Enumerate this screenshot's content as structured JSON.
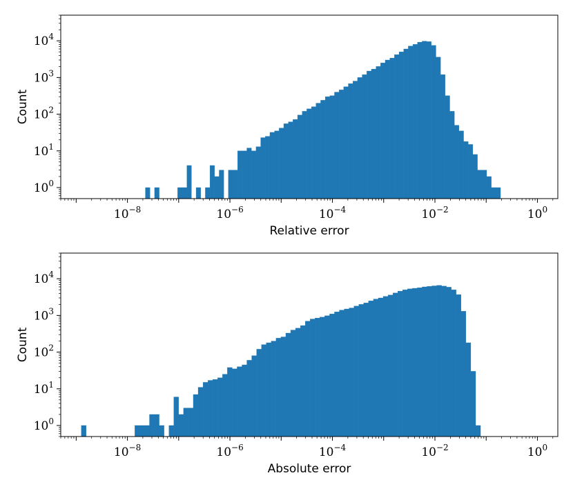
{
  "chart_data": [
    {
      "type": "bar",
      "xlabel": "Relative error",
      "ylabel": "Count",
      "x_scale": "log",
      "y_scale": "log",
      "xlim": [
        5e-10,
        2.5
      ],
      "ylim": [
        0.5,
        50000
      ],
      "grid": false,
      "legend": "none",
      "bar_color": "#1f77b4",
      "x_ticks": [
        {
          "base": "10",
          "exp": "−8",
          "value": 1e-08
        },
        {
          "base": "10",
          "exp": "−6",
          "value": 1e-06
        },
        {
          "base": "10",
          "exp": "−4",
          "value": 0.0001
        },
        {
          "base": "10",
          "exp": "−2",
          "value": 0.01
        },
        {
          "base": "10",
          "exp": "0",
          "value": 1
        }
      ],
      "y_ticks": [
        {
          "base": "10",
          "exp": "0",
          "value": 1
        },
        {
          "base": "10",
          "exp": "1",
          "value": 10
        },
        {
          "base": "10",
          "exp": "2",
          "value": 100
        },
        {
          "base": "10",
          "exp": "3",
          "value": 1000
        },
        {
          "base": "10",
          "exp": "4",
          "value": 10000
        }
      ],
      "bins_log10_start": -9.0,
      "bins_log10_width": 0.09,
      "counts": [
        0,
        0,
        0,
        0,
        0,
        0,
        0,
        0,
        0,
        0,
        0,
        0,
        0,
        0,
        0,
        1,
        0,
        1,
        0,
        0,
        0,
        0,
        1,
        1,
        4,
        0,
        1,
        0,
        1,
        4,
        2,
        3,
        0,
        3,
        3,
        10,
        10,
        12,
        10,
        13,
        23,
        25,
        32,
        35,
        42,
        55,
        62,
        72,
        95,
        120,
        140,
        160,
        200,
        240,
        300,
        320,
        400,
        460,
        560,
        680,
        800,
        1000,
        1200,
        1500,
        1700,
        2000,
        2500,
        3000,
        3400,
        4200,
        5000,
        6000,
        7200,
        8000,
        9200,
        9800,
        9500,
        7500,
        3600,
        1200,
        320,
        120,
        50,
        35,
        18,
        15,
        8,
        3,
        3,
        2,
        1,
        1,
        0,
        0,
        0,
        0
      ]
    },
    {
      "type": "bar",
      "xlabel": "Absolute error",
      "ylabel": "Count",
      "x_scale": "log",
      "y_scale": "log",
      "xlim": [
        5e-10,
        2.5
      ],
      "ylim": [
        0.5,
        50000
      ],
      "grid": false,
      "legend": "none",
      "bar_color": "#1f77b4",
      "x_ticks": [
        {
          "base": "10",
          "exp": "−8",
          "value": 1e-08
        },
        {
          "base": "10",
          "exp": "−6",
          "value": 1e-06
        },
        {
          "base": "10",
          "exp": "−4",
          "value": 0.0001
        },
        {
          "base": "10",
          "exp": "−2",
          "value": 0.01
        },
        {
          "base": "10",
          "exp": "0",
          "value": 1
        }
      ],
      "y_ticks": [
        {
          "base": "10",
          "exp": "0",
          "value": 1
        },
        {
          "base": "10",
          "exp": "1",
          "value": 10
        },
        {
          "base": "10",
          "exp": "2",
          "value": 100
        },
        {
          "base": "10",
          "exp": "3",
          "value": 1000
        },
        {
          "base": "10",
          "exp": "4",
          "value": 10000
        }
      ],
      "bins_log10_start": -8.9,
      "bins_log10_width": 0.095,
      "counts": [
        1,
        0,
        0,
        0,
        0,
        0,
        0,
        0,
        0,
        0,
        0,
        1,
        1,
        1,
        2,
        2,
        1,
        0,
        1,
        6,
        2,
        3,
        3,
        7,
        11,
        15,
        17,
        18,
        20,
        25,
        38,
        35,
        40,
        45,
        60,
        80,
        120,
        160,
        180,
        200,
        240,
        260,
        330,
        400,
        450,
        530,
        700,
        800,
        850,
        900,
        980,
        1100,
        1250,
        1400,
        1500,
        1600,
        1800,
        2000,
        2200,
        2500,
        2800,
        3000,
        3300,
        3600,
        4100,
        4600,
        5000,
        5300,
        5500,
        5700,
        6000,
        6200,
        6400,
        6600,
        6300,
        5900,
        5000,
        3700,
        1300,
        180,
        30,
        1
      ]
    }
  ]
}
